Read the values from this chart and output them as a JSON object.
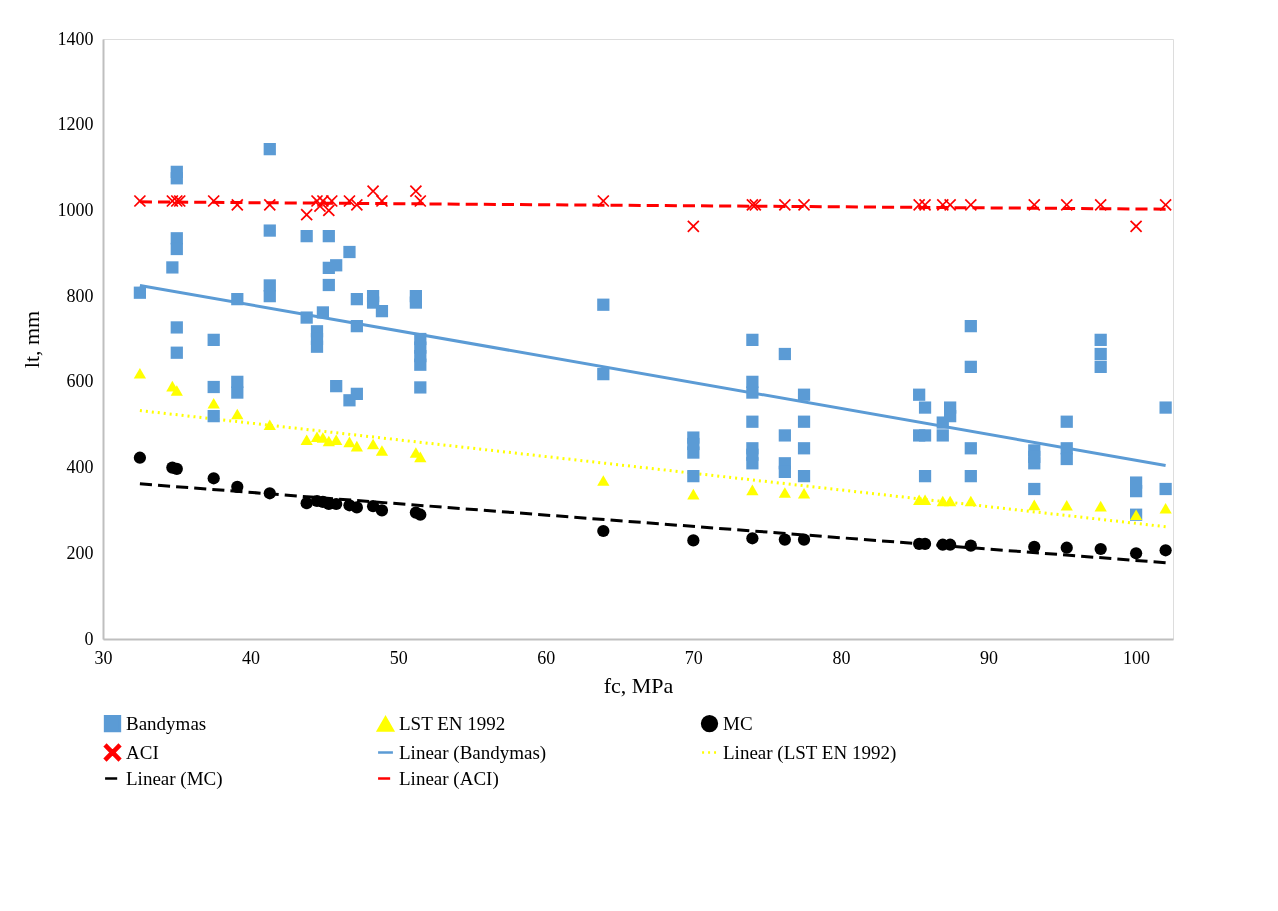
{
  "chart_data": {
    "type": "scatter",
    "xlabel": "fc, MPa",
    "ylabel": "lt, mm",
    "xlim": [
      30,
      102.5
    ],
    "xticks": [
      30,
      40,
      50,
      60,
      70,
      80,
      90,
      100
    ],
    "ylim": [
      0,
      1400
    ],
    "yticks": [
      0,
      200,
      400,
      600,
      800,
      {
        "value": 1000,
        "label": "1000"
      },
      {
        "value": 1200,
        "label": "1200"
      },
      {
        "value": 1400,
        "label": "1400"
      }
    ],
    "grid": false,
    "legend": "bottom",
    "series": [
      {
        "name": "Bandymas",
        "marker": "square",
        "color": "#5b9bd5",
        "x": [
          32.5,
          34.7,
          35,
          35,
          35,
          35,
          35,
          35,
          37.5,
          37.5,
          37.5,
          39.1,
          39.1,
          39.1,
          41.3,
          41.3,
          41.3,
          41.3,
          43.8,
          43.8,
          44.5,
          44.5,
          44.5,
          44.9,
          45.3,
          45.3,
          45.3,
          45.8,
          45.8,
          46.7,
          46.7,
          47.2,
          47.2,
          47.2,
          48.3,
          48.3,
          48.9,
          51.2,
          51.2,
          51.5,
          51.5,
          51.5,
          51.5,
          51.5,
          63.9,
          63.9,
          70,
          70,
          70,
          70,
          74,
          74,
          74,
          74,
          74,
          74,
          74,
          76.2,
          76.2,
          76.2,
          76.2,
          77.5,
          77.5,
          77.5,
          77.5,
          85.3,
          85.3,
          85.7,
          85.7,
          85.7,
          86.9,
          86.9,
          87.4,
          87.4,
          88.8,
          88.8,
          88.8,
          88.8,
          93.1,
          93.1,
          93.1,
          93.1,
          95.3,
          95.3,
          95.3,
          97.6,
          97.6,
          97.6,
          100,
          100,
          100,
          102,
          102
        ],
        "values": [
          808,
          867,
          935,
          910,
          1090,
          1075,
          727,
          668,
          698,
          588,
          520,
          793,
          600,
          575,
          1143,
          953,
          825,
          800,
          940,
          750,
          718,
          700,
          682,
          762,
          940,
          866,
          826,
          872,
          590,
          903,
          557,
          793,
          730,
          572,
          800,
          785,
          765,
          800,
          785,
          700,
          680,
          660,
          640,
          587,
          780,
          618,
          470,
          455,
          435,
          380,
          698,
          600,
          575,
          507,
          445,
          430,
          410,
          665,
          475,
          410,
          390,
          570,
          507,
          445,
          380,
          570,
          475,
          540,
          475,
          380,
          505,
          475,
          540,
          520,
          730,
          635,
          445,
          380,
          440,
          425,
          410,
          350,
          507,
          445,
          420,
          698,
          665,
          635,
          365,
          345,
          290,
          540,
          350
        ]
      },
      {
        "name": "LST EN 1992",
        "marker": "triangle",
        "color": "#ffff00",
        "x": [
          32.5,
          34.7,
          35,
          37.5,
          39.1,
          41.3,
          43.8,
          44.5,
          44.9,
          45.3,
          45.8,
          46.7,
          47.2,
          48.3,
          48.9,
          51.2,
          51.5,
          63.9,
          70,
          74,
          76.2,
          77.5,
          85.3,
          85.7,
          86.9,
          87.4,
          88.8,
          93.1,
          95.3,
          97.6,
          100,
          102
        ],
        "values": [
          620,
          590,
          580,
          550,
          525,
          500,
          465,
          472,
          470,
          462,
          465,
          460,
          450,
          455,
          440,
          435,
          425,
          370,
          338,
          348,
          342,
          340,
          325,
          325,
          322,
          322,
          322,
          313,
          312,
          310,
          290,
          305
        ]
      },
      {
        "name": "MC",
        "marker": "circle",
        "color": "#000000",
        "x": [
          32.5,
          34.7,
          35,
          37.5,
          39.1,
          41.3,
          43.8,
          44.5,
          44.9,
          45.3,
          45.8,
          46.7,
          47.2,
          48.3,
          48.9,
          51.2,
          51.5,
          63.9,
          70,
          74,
          76.2,
          77.5,
          85.3,
          85.7,
          86.9,
          87.4,
          88.8,
          93.1,
          95.3,
          97.6,
          100,
          102
        ],
        "values": [
          423,
          400,
          397,
          375,
          355,
          340,
          317,
          322,
          320,
          315,
          315,
          312,
          307,
          310,
          300,
          295,
          290,
          252,
          230,
          235,
          232,
          232,
          222,
          222,
          220,
          220,
          218,
          215,
          213,
          210,
          200,
          207
        ]
      },
      {
        "name": "ACI",
        "marker": "cross",
        "color": "#ff0000",
        "x": [
          32.5,
          34.7,
          35,
          35.2,
          37.5,
          39.1,
          41.3,
          43.8,
          44.5,
          44.7,
          44.9,
          45.3,
          45.5,
          46.7,
          47.2,
          48.3,
          48.9,
          51.2,
          51.5,
          63.9,
          70,
          74,
          74.2,
          76.2,
          77.5,
          85.3,
          85.7,
          86.9,
          87.4,
          88.8,
          93.1,
          95.3,
          97.6,
          100,
          102
        ],
        "values": [
          1022,
          1022,
          1022,
          1022,
          1022,
          1013,
          1013,
          990,
          1022,
          1010,
          1022,
          1000,
          1022,
          1022,
          1013,
          1045,
          1022,
          1045,
          1022,
          1022,
          963,
          1013,
          1013,
          1013,
          1013,
          1013,
          1013,
          1013,
          1013,
          1013,
          1013,
          1013,
          1013,
          963,
          1013
        ]
      },
      {
        "name": "Linear (Bandymas)",
        "type": "line",
        "line_style": "solid",
        "marker": "none",
        "color": "#5b9bd5",
        "x": [
          32.5,
          102
        ],
        "values": [
          825,
          405
        ]
      },
      {
        "name": "Linear (LST EN 1992)",
        "type": "line",
        "line_style": "dotted",
        "marker": "none",
        "color": "#ffff00",
        "x": [
          32.5,
          102
        ],
        "values": [
          533,
          262
        ]
      },
      {
        "name": "Linear (MC)",
        "type": "line",
        "line_style": "dashed",
        "marker": "none",
        "color": "#000000",
        "x": [
          32.5,
          102
        ],
        "values": [
          362,
          178
        ]
      },
      {
        "name": "Linear (ACI)",
        "type": "line",
        "line_style": "dashed",
        "marker": "none",
        "color": "#ff0000",
        "x": [
          32.5,
          102
        ],
        "values": [
          1020,
          1003
        ]
      }
    ]
  }
}
